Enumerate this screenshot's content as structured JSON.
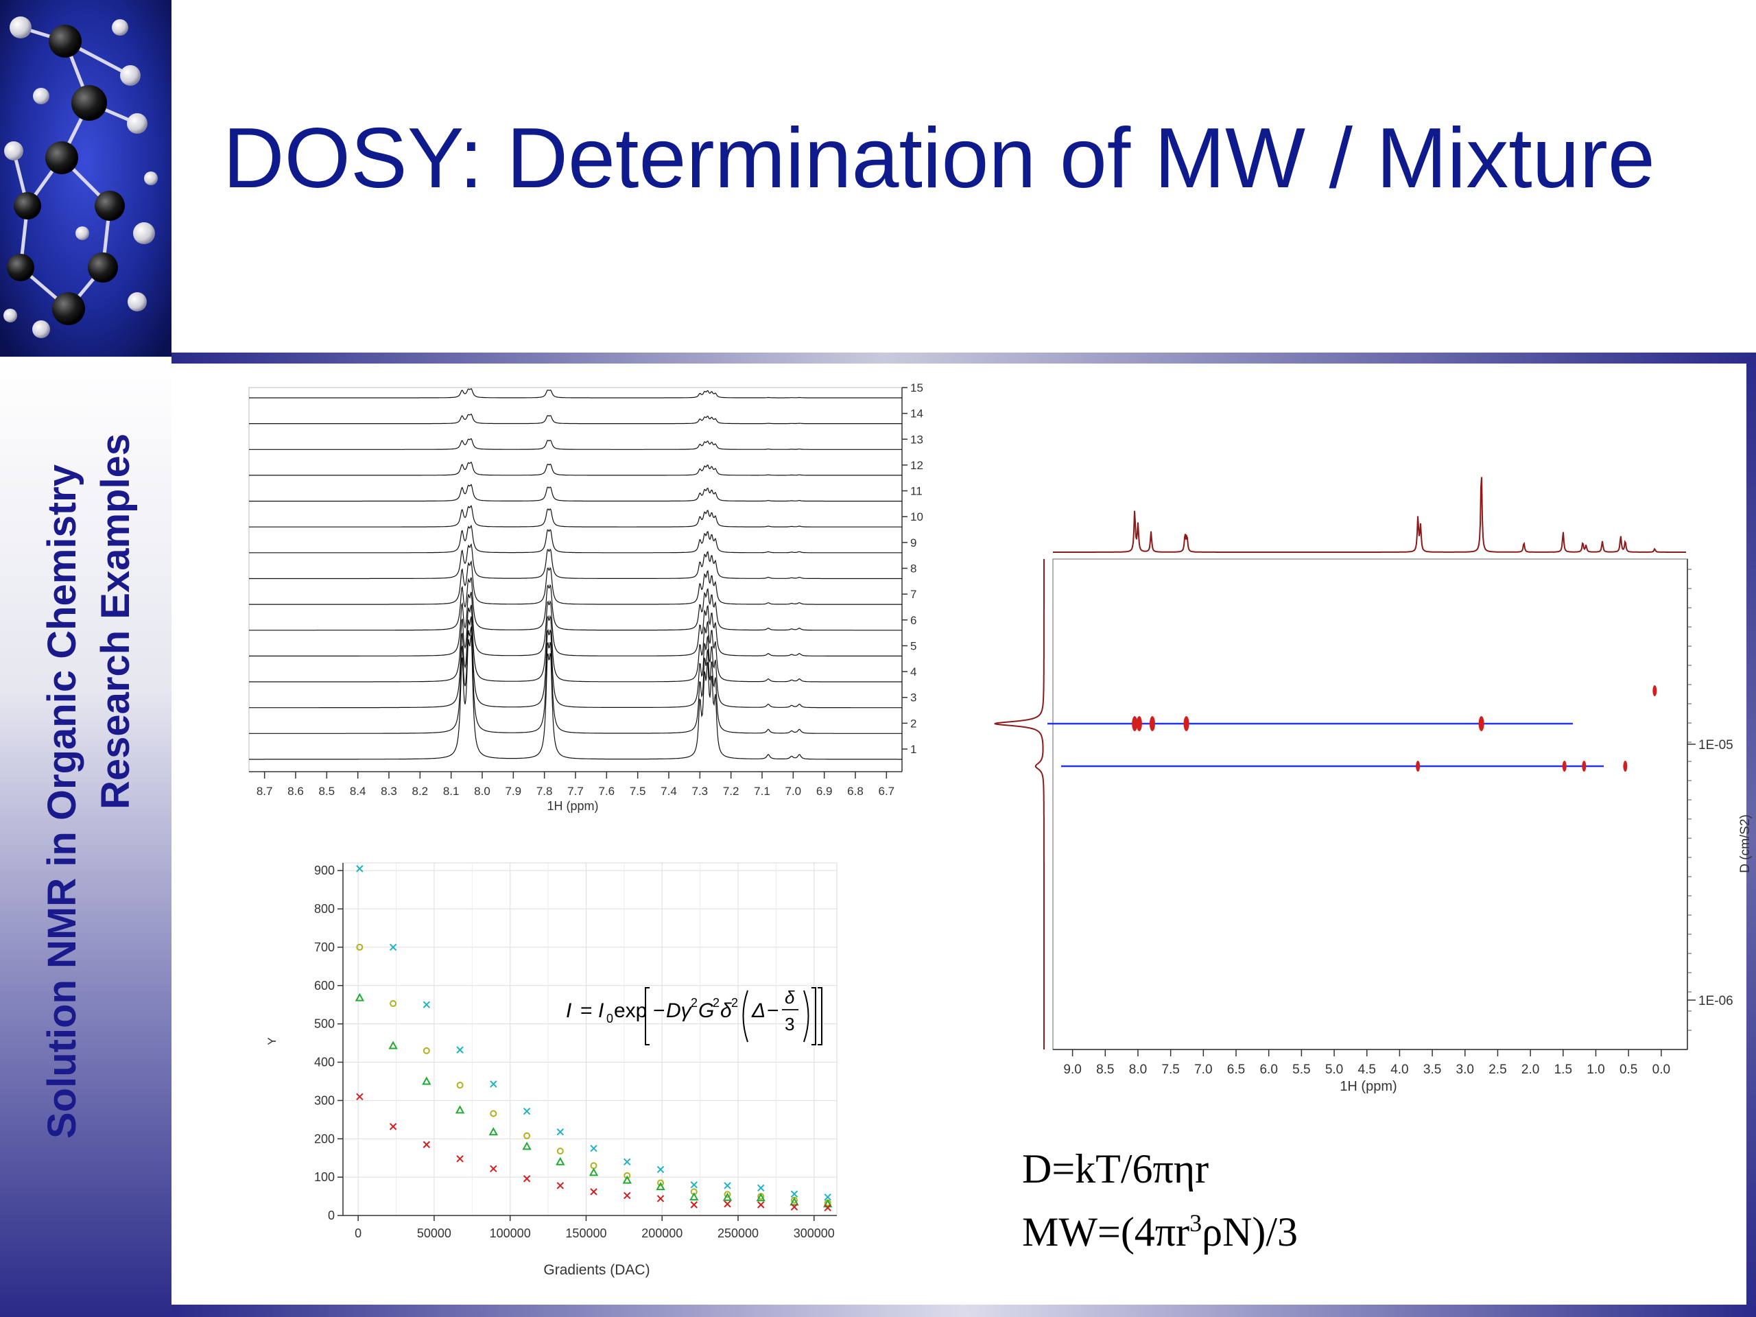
{
  "slide": {
    "title": "DOSY: Determination of MW / Mixture",
    "sidebar_line1": "Solution NMR in Organic Chemistry",
    "sidebar_line2": "Research Examples"
  },
  "stacked_spectra": {
    "x_ticks": [
      "8.7",
      "8.6",
      "8.5",
      "8.4",
      "8.3",
      "8.2",
      "8.1",
      "8.0",
      "7.9",
      "7.8",
      "7.7",
      "7.6",
      "7.5",
      "7.4",
      "7.3",
      "7.2",
      "7.1",
      "7.0",
      "6.9",
      "6.8",
      "6.7"
    ],
    "x_label": "1H (ppm)",
    "trace_labels": [
      "15",
      "14",
      "13",
      "12",
      "11",
      "10",
      "9",
      "8",
      "7",
      "6",
      "5",
      "4",
      "3",
      "2",
      "1"
    ]
  },
  "dosy_plot": {
    "x_ticks": [
      "9.0",
      "8.5",
      "8.0",
      "7.5",
      "7.0",
      "6.5",
      "6.0",
      "5.5",
      "5.0",
      "4.5",
      "4.0",
      "3.5",
      "3.0",
      "2.5",
      "2.0",
      "1.5",
      "1.0",
      "0.5",
      "0.0"
    ],
    "x_label": "1H (ppm)",
    "y_ticks": [
      "1E-05",
      "1E-06"
    ],
    "y_label": "D (cm/S2)"
  },
  "formulas": {
    "stokes_einstein": "D=kT/6πηr",
    "mw_prefix": "MW=(4πr",
    "mw_sup": "3",
    "mw_suffix": "ρN)/3",
    "signal_decay": "I = I₀exp[−Dγ²G²δ²(Δ − δ/3)]"
  },
  "chart_data": {
    "type": "scatter",
    "title": "",
    "xlabel": "Gradients (DAC)",
    "ylabel": "Y",
    "xlim": [
      -10000,
      315000
    ],
    "ylim": [
      0,
      920
    ],
    "x_ticks": [
      0,
      50000,
      100000,
      150000,
      200000,
      250000,
      300000
    ],
    "y_ticks": [
      0,
      100,
      200,
      300,
      400,
      500,
      600,
      700,
      800,
      900
    ],
    "grid": true,
    "x": [
      1000,
      23000,
      45000,
      67000,
      89000,
      111000,
      133000,
      155000,
      177000,
      199000,
      221000,
      243000,
      265000,
      287000,
      309000
    ],
    "series": [
      {
        "marker": "x",
        "color": "#1fb3c2",
        "values": [
          905,
          700,
          550,
          432,
          343,
          272,
          218,
          175,
          140,
          120,
          80,
          78,
          72,
          56,
          48
        ]
      },
      {
        "marker": "o",
        "color": "#b0b020",
        "values": [
          700,
          553,
          430,
          340,
          266,
          208,
          168,
          130,
          104,
          85,
          62,
          55,
          50,
          40,
          33
        ]
      },
      {
        "marker": "^",
        "color": "#22aa33",
        "values": [
          568,
          443,
          350,
          275,
          218,
          180,
          140,
          112,
          92,
          75,
          48,
          47,
          46,
          35,
          30
        ]
      },
      {
        "marker": "x",
        "color": "#d02020",
        "values": [
          310,
          232,
          185,
          148,
          122,
          96,
          78,
          62,
          52,
          44,
          28,
          30,
          28,
          22,
          20
        ]
      }
    ]
  }
}
